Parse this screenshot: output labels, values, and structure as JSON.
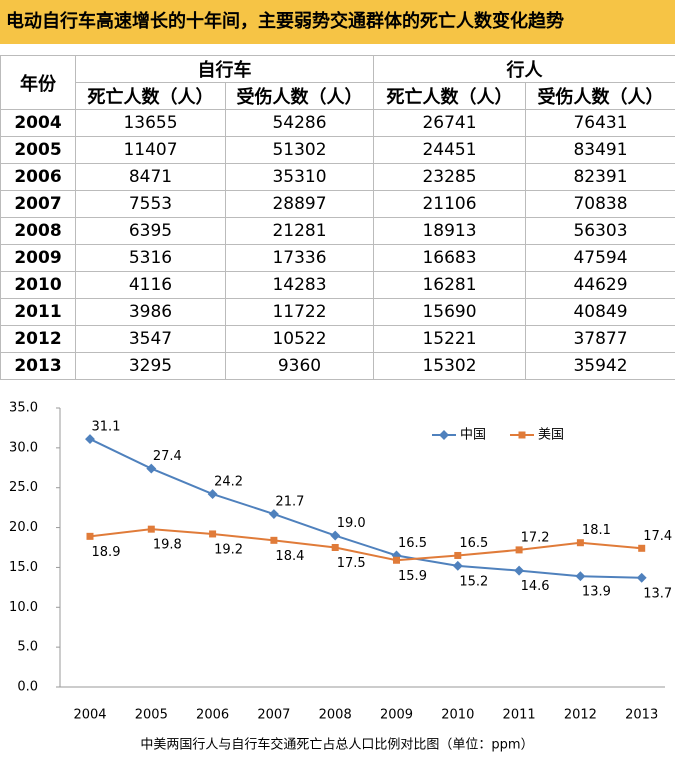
{
  "header": {
    "title": "电动自行车高速增长的十年间，主要弱势交通群体的死亡人数变化趋势"
  },
  "table": {
    "columns": [
      "年份",
      "自行车",
      "行人"
    ],
    "subcolumns": [
      "死亡人数（人）",
      "受伤人数（人）",
      "死亡人数（人）",
      "受伤人数（人）"
    ],
    "rows": [
      [
        2004,
        13655,
        54286,
        26741,
        76431
      ],
      [
        2005,
        11407,
        51302,
        24451,
        83491
      ],
      [
        2006,
        8471,
        35310,
        23285,
        82391
      ],
      [
        2007,
        7553,
        28897,
        21106,
        70838
      ],
      [
        2008,
        6395,
        21281,
        18913,
        56303
      ],
      [
        2009,
        5316,
        17336,
        16683,
        47594
      ],
      [
        2010,
        4116,
        14283,
        16281,
        44629
      ],
      [
        2011,
        3986,
        11722,
        15690,
        40849
      ],
      [
        2012,
        3547,
        10522,
        15221,
        37877
      ],
      [
        2013,
        3295,
        9360,
        15302,
        35942
      ]
    ]
  },
  "chart_data": {
    "type": "line",
    "x_label": "中美两国行人与自行车交通死亡占总人口比例对比图（单位：ppm）",
    "categories": [
      "2004",
      "2005",
      "2006",
      "2007",
      "2008",
      "2009",
      "2010",
      "2011",
      "2012",
      "2013"
    ],
    "series": [
      {
        "name": "中国",
        "color": "#4f81bd",
        "values": [
          31.1,
          27.4,
          24.2,
          21.7,
          19.0,
          16.5,
          15.2,
          14.6,
          13.9,
          13.7
        ],
        "value_labels": [
          "31.1",
          "27.4",
          "24.2",
          "21.7",
          "19.0",
          "16.5",
          "15.2",
          "14.6",
          "13.9",
          "13.7"
        ]
      },
      {
        "name": "美国",
        "color": "#e07b39",
        "values": [
          18.9,
          19.8,
          19.2,
          18.4,
          17.5,
          15.9,
          16.5,
          17.2,
          18.1,
          17.4
        ],
        "value_labels": [
          "18.9",
          "19.8",
          "19.2",
          "18.4",
          "17.5",
          "15.9",
          "16.5",
          "17.2",
          "18.1",
          "17.4"
        ]
      }
    ],
    "ylim": [
      0,
      35
    ],
    "yticks": [
      {
        "value": 0,
        "label": "0.0"
      },
      {
        "value": 5,
        "label": "5.0"
      },
      {
        "value": 10,
        "label": "10.0"
      },
      {
        "value": 15,
        "label": "15.0"
      },
      {
        "value": 20,
        "label": "20.0"
      },
      {
        "value": 25,
        "label": "25.0"
      },
      {
        "value": 30,
        "label": "30.0"
      },
      {
        "value": 35,
        "label": "35.0"
      }
    ],
    "grid": false
  }
}
